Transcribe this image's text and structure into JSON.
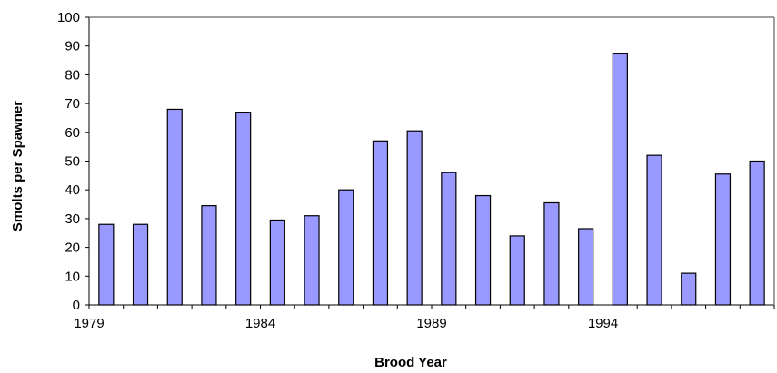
{
  "chart_data": {
    "type": "bar",
    "title": "",
    "xlabel": "Brood Year",
    "ylabel": "Smolts per Spawner",
    "categories": [
      "1979",
      "1980",
      "1981",
      "1982",
      "1983",
      "1984",
      "1985",
      "1986",
      "1987",
      "1988",
      "1989",
      "1990",
      "1991",
      "1992",
      "1993",
      "1994",
      "1995",
      "1996",
      "1997",
      "1998"
    ],
    "values": [
      28,
      28,
      68,
      34.5,
      67,
      29.5,
      31,
      40,
      57,
      60.5,
      46,
      38,
      24,
      35.5,
      26.5,
      87.5,
      52,
      11,
      45.5,
      50
    ],
    "x_tick_labels": [
      "1979",
      "1984",
      "1989",
      "1994"
    ],
    "y_tick_labels": [
      "0",
      "10",
      "20",
      "30",
      "40",
      "50",
      "60",
      "70",
      "80",
      "90",
      "100"
    ],
    "ylim": [
      0,
      100
    ],
    "grid": false,
    "legend": "none",
    "bar_color": "#9999ff",
    "bar_outline": "#000000"
  }
}
